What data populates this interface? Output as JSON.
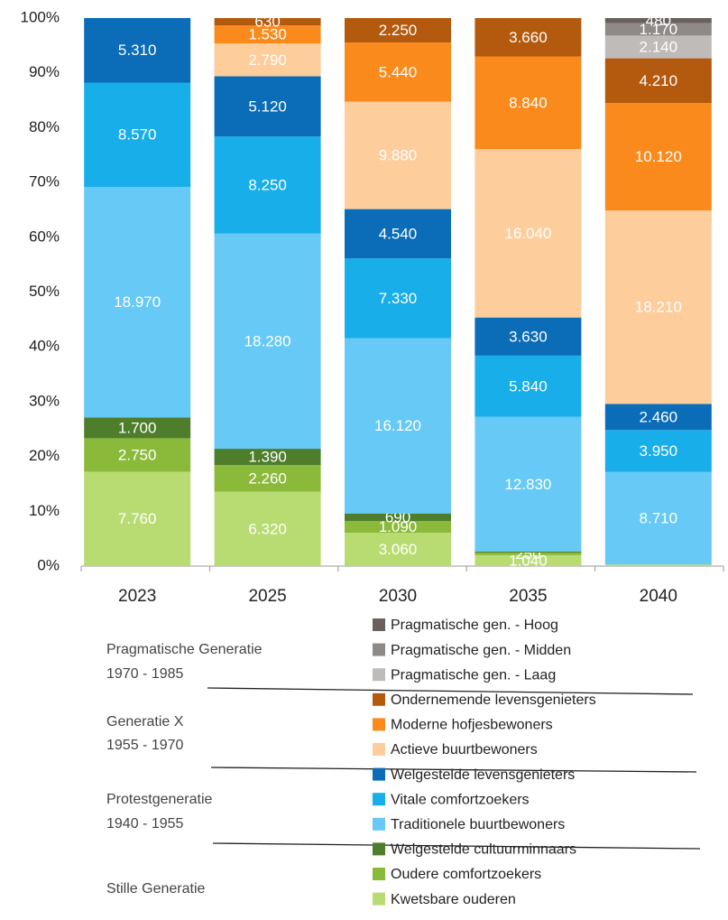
{
  "chart_data": {
    "type": "stacked_percent_bar",
    "categories": [
      "2023",
      "2025",
      "2030",
      "2035",
      "2040"
    ],
    "ylim": [
      0,
      100
    ],
    "yticks": [
      {
        "value": 0,
        "label": "0%"
      },
      {
        "value": 10,
        "label": "10%"
      },
      {
        "value": 20,
        "label": "20%"
      },
      {
        "value": 30,
        "label": "30%"
      },
      {
        "value": 40,
        "label": "40%"
      },
      {
        "value": 50,
        "label": "50%"
      },
      {
        "value": 60,
        "label": "60%"
      },
      {
        "value": 70,
        "label": "70%"
      },
      {
        "value": 80,
        "label": "80%"
      },
      {
        "value": 90,
        "label": "90%"
      },
      {
        "value": 100,
        "label": "100%"
      }
    ],
    "series": [
      {
        "name": "Kwetsbare ouderen",
        "color": "#b8dc72",
        "values": [
          7760,
          6320,
          3060,
          1040,
          150
        ],
        "value_labels": [
          "7.760",
          "6.320",
          "3.060",
          "1.040",
          null
        ]
      },
      {
        "name": "Oudere comfortzoekers",
        "color": "#8bba3a",
        "values": [
          2750,
          2260,
          1090,
          250,
          0
        ],
        "value_labels": [
          "2.750",
          "2.260",
          "1.090",
          "250",
          null
        ]
      },
      {
        "name": "Welgestelde cultuurminnaars",
        "color": "#4e7e2b",
        "values": [
          1700,
          1390,
          690,
          100,
          0
        ],
        "value_labels": [
          "1.700",
          "1.390",
          "690",
          null,
          null
        ]
      },
      {
        "name": "Traditionele buurtbewoners",
        "color": "#66c9f6",
        "values": [
          18970,
          18280,
          16120,
          12830,
          8710
        ],
        "value_labels": [
          "18.970",
          "18.280",
          "16.120",
          "12.830",
          "8.710"
        ]
      },
      {
        "name": "Vitale comfortzoekers",
        "color": "#17aeea",
        "values": [
          8570,
          8250,
          7330,
          5840,
          3950
        ],
        "value_labels": [
          "8.570",
          "8.250",
          "7.330",
          "5.840",
          "3.950"
        ]
      },
      {
        "name": "Welgestelde levensgenieters",
        "color": "#0b6cb8",
        "values": [
          5310,
          5120,
          4540,
          3630,
          2460
        ],
        "value_labels": [
          "5.310",
          "5.120",
          "4.540",
          "3.630",
          "2.460"
        ]
      },
      {
        "name": "Actieve buurtbewoners",
        "color": "#fdcd9c",
        "values": [
          0,
          2790,
          9880,
          16040,
          18210
        ],
        "value_labels": [
          null,
          "2.790",
          "9.880",
          "16.040",
          "18.210"
        ]
      },
      {
        "name": "Moderne hofjesbewoners",
        "color": "#fb8a1c",
        "values": [
          0,
          1530,
          5440,
          8840,
          10120
        ],
        "value_labels": [
          null,
          "1.530",
          "5.440",
          "8.840",
          "10.120"
        ]
      },
      {
        "name": "Ondernemende levensgenieters",
        "color": "#b45a0e",
        "values": [
          0,
          630,
          2250,
          3660,
          4210
        ],
        "value_labels": [
          null,
          "630",
          "2.250",
          "3.660",
          "4.210"
        ]
      },
      {
        "name": "Pragmatische gen. - Laag",
        "color": "#bfbbb8",
        "values": [
          0,
          0,
          0,
          0,
          2140
        ],
        "value_labels": [
          null,
          null,
          null,
          null,
          "2.140"
        ]
      },
      {
        "name": "Pragmatische gen. - Midden",
        "color": "#8e8a88",
        "values": [
          0,
          0,
          0,
          0,
          1170
        ],
        "value_labels": [
          null,
          null,
          null,
          null,
          "1.170"
        ]
      },
      {
        "name": "Pragmatische gen. - Hoog",
        "color": "#6a615d",
        "values": [
          0,
          0,
          0,
          0,
          480
        ],
        "value_labels": [
          null,
          null,
          null,
          null,
          "480"
        ]
      }
    ],
    "groups": [
      {
        "name": "Pragmatische Generatie",
        "years": "1970 - 1985"
      },
      {
        "name": "Generatie X",
        "years": "1955 - 1970"
      },
      {
        "name": "Protestgeneratie",
        "years": "1940 - 1955"
      },
      {
        "name": "Stille Generatie"
      }
    ]
  }
}
